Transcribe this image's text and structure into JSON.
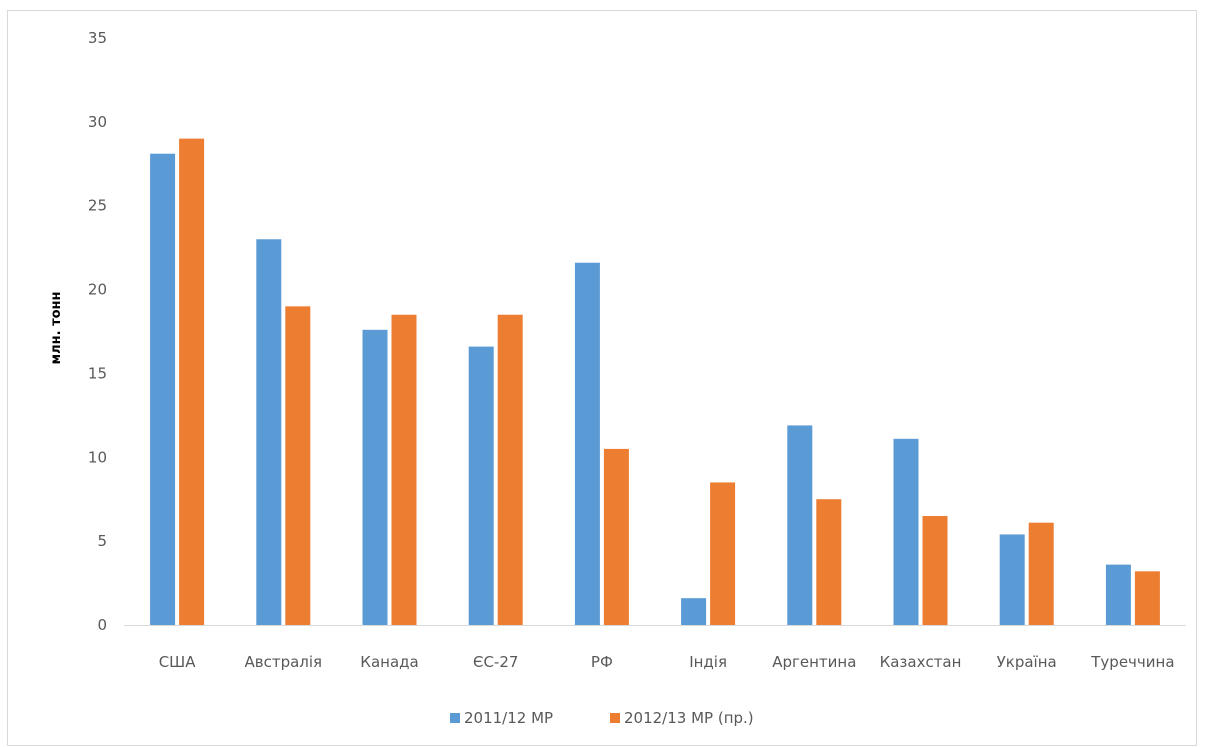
{
  "chart_data": {
    "type": "bar",
    "title": "",
    "xlabel": "",
    "ylabel": "млн. тонн",
    "ylim": [
      0,
      35
    ],
    "yticks": [
      0,
      5,
      10,
      15,
      20,
      25,
      30,
      35
    ],
    "grid": false,
    "legend_position": "bottom",
    "categories": [
      "США",
      "Австралія",
      "Канада",
      "ЄС-27",
      "РФ",
      "Індія",
      "Аргентина",
      "Казахстан",
      "Україна",
      "Туреччина"
    ],
    "series": [
      {
        "name": "2011/12 МР",
        "color": "#5b9bd5",
        "values": [
          28.1,
          23.0,
          17.6,
          16.6,
          21.6,
          1.6,
          11.9,
          11.1,
          5.4,
          3.6
        ]
      },
      {
        "name": "2012/13 МР (пр.)",
        "color": "#ed7d31",
        "values": [
          29.0,
          19.0,
          18.5,
          18.5,
          10.5,
          8.5,
          7.5,
          6.5,
          6.1,
          3.2
        ]
      }
    ]
  }
}
